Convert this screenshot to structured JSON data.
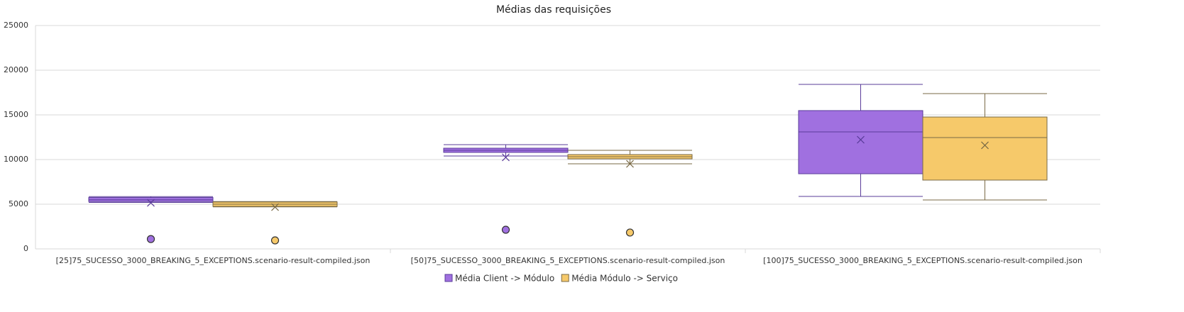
{
  "chart_data": {
    "type": "box",
    "title": "Médias das requisições",
    "categories": [
      "[25]75_SUCESSO_3000_BREAKING_5_EXCEPTIONS.scenario-result-compiled.json",
      "[50]75_SUCESSO_3000_BREAKING_5_EXCEPTIONS.scenario-result-compiled.json",
      "[100]75_SUCESSO_3000_BREAKING_5_EXCEPTIONS.scenario-result-compiled.json"
    ],
    "series": [
      {
        "name": "Média Client -> Módulo",
        "color": "#a070e0",
        "stroke": "#5a3c9a",
        "boxes": [
          {
            "min": 5200,
            "q1": 5300,
            "median": 5500,
            "q3": 5750,
            "max": 5850,
            "mean": 5150,
            "outliers": [
              1100
            ]
          },
          {
            "min": 10400,
            "q1": 10800,
            "median": 11030,
            "q3": 11270,
            "max": 11670,
            "mean": 10240,
            "outliers": [
              2140
            ]
          },
          {
            "min": 5870,
            "q1": 8410,
            "median": 13100,
            "q3": 15480,
            "max": 18410,
            "mean": 12220,
            "outliers": []
          }
        ]
      },
      {
        "name": "Média Módulo -> Serviço",
        "color": "#f6c96a",
        "stroke": "#7a6a45",
        "boxes": [
          {
            "min": 4700,
            "q1": 4750,
            "median": 5000,
            "q3": 5250,
            "max": 5300,
            "mean": 4680,
            "outliers": [
              950
            ]
          },
          {
            "min": 9520,
            "q1": 10080,
            "median": 10320,
            "q3": 10560,
            "max": 11030,
            "mean": 9520,
            "outliers": [
              1830
            ]
          },
          {
            "min": 5480,
            "q1": 7700,
            "median": 12460,
            "q3": 14760,
            "max": 17380,
            "mean": 11590,
            "outliers": []
          }
        ]
      }
    ],
    "ylim": [
      0,
      25000
    ],
    "yticks": [
      0,
      5000,
      10000,
      15000,
      20000,
      25000
    ],
    "grid": true,
    "legend": "bottom"
  }
}
